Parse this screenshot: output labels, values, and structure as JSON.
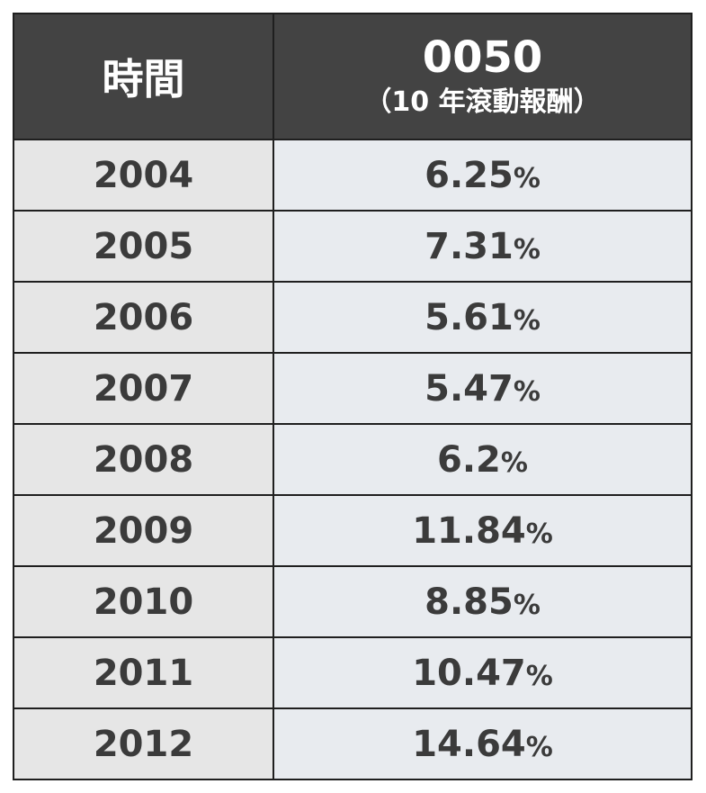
{
  "table": {
    "header": [
      "時間",
      "0050",
      "（10 年滾動報酬）"
    ],
    "rows": [
      [
        "2004",
        "6.25%"
      ],
      [
        "2005",
        "7.31%"
      ],
      [
        "2006",
        "5.61%"
      ],
      [
        "2007",
        "5.47%"
      ],
      [
        "2008",
        "6.2%"
      ],
      [
        "2009",
        "11.84%"
      ],
      [
        "2010",
        "8.85%"
      ],
      [
        "2011",
        "10.47%"
      ],
      [
        "2012",
        "14.64%"
      ]
    ]
  }
}
